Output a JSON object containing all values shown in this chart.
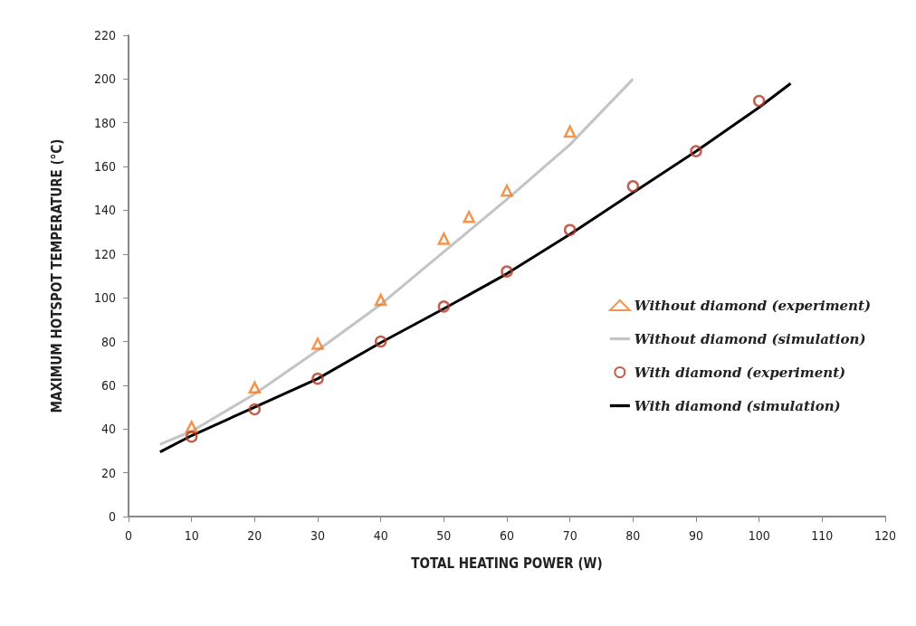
{
  "chart_data": {
    "type": "line",
    "xlabel": "TOTAL HEATING POWER (W)",
    "ylabel": "MAXIMUM HOTSPOT TEMPERATURE (°C)",
    "xlim": [
      0,
      120
    ],
    "xticks": [
      0,
      10,
      20,
      30,
      40,
      50,
      60,
      70,
      80,
      90,
      100,
      110,
      120
    ],
    "ylim": [
      0,
      220
    ],
    "yticks": [
      0,
      20,
      40,
      60,
      80,
      100,
      120,
      140,
      160,
      180,
      200,
      220
    ],
    "grid": false,
    "legend": "right",
    "series": [
      {
        "name": "Without diamond (experiment)",
        "type": "scatter",
        "marker": "triangle",
        "color": "#f07a22",
        "x": [
          10,
          20,
          30,
          40,
          50,
          54,
          60,
          70
        ],
        "values": [
          41,
          59,
          79,
          99,
          127,
          137,
          149,
          176
        ]
      },
      {
        "name": "Without diamond (simulation)",
        "marker": "none",
        "color": "#c4c4c4",
        "x": [
          5,
          10,
          20,
          30,
          40,
          50,
          60,
          70,
          80
        ],
        "values": [
          33,
          39,
          56,
          76,
          97,
          121,
          145,
          170,
          200
        ]
      },
      {
        "name": "With diamond (experiment)",
        "type": "scatter",
        "marker": "circle",
        "color": "#b23a22",
        "x": [
          10,
          20,
          30,
          40,
          50,
          60,
          70,
          80,
          90,
          100
        ],
        "values": [
          36.5,
          49,
          63,
          80,
          96,
          112,
          131,
          151,
          167,
          190
        ]
      },
      {
        "name": "With diamond (simulation)",
        "marker": "none",
        "color": "#000000",
        "x": [
          5,
          10,
          20,
          30,
          40,
          50,
          60,
          70,
          80,
          90,
          100,
          105
        ],
        "values": [
          29.5,
          37,
          50,
          63,
          79.5,
          95,
          111,
          129,
          148,
          167,
          187,
          198
        ]
      }
    ]
  }
}
